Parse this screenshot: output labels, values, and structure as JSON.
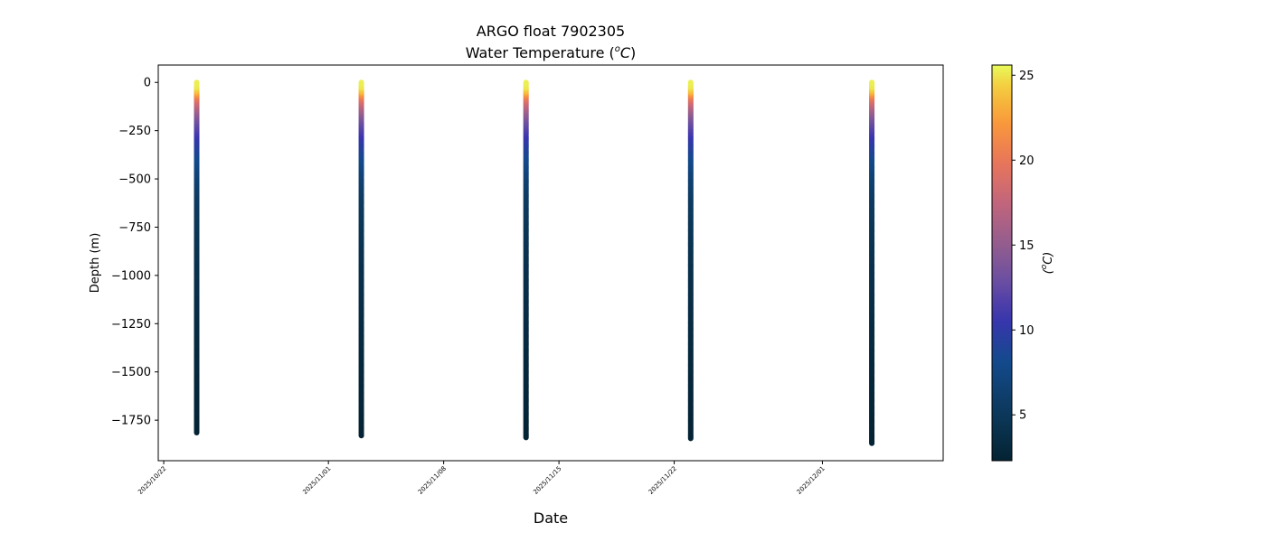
{
  "chart_data": {
    "type": "scatter",
    "title": "ARGO float 7902305",
    "subtitle": "Water Temperature (",
    "subtitle_unit_sup": "o",
    "subtitle_unit_letter": "C",
    "subtitle_close": ")",
    "xlabel": "Date",
    "ylabel": "Depth (m)",
    "colorbar_label_open": "(",
    "colorbar_label_sup": "o",
    "colorbar_label_letter": "C",
    "colorbar_label_close": ")",
    "colormap": "thermal",
    "xlim": [
      "2025-10-21T16:00",
      "2025-12-08T08:00"
    ],
    "ylim": [
      -1960,
      90
    ],
    "x_ticks": [
      "2025/10/22",
      "2025/11/01",
      "2025/11/08",
      "2025/11/15",
      "2025/11/22",
      "2025/12/01"
    ],
    "y_ticks": [
      0,
      -250,
      -500,
      -750,
      -1000,
      -1250,
      -1500,
      -1750
    ],
    "y_tick_labels": [
      "0",
      "−250",
      "−500",
      "−750",
      "−1000",
      "−1250",
      "−1500",
      "−1750"
    ],
    "colorbar_range": [
      2.3,
      25.6
    ],
    "colorbar_ticks": [
      5,
      10,
      15,
      20,
      25
    ],
    "grid": false,
    "profiles": [
      {
        "date": "2025-10-24T00:00",
        "max_depth": -1815
      },
      {
        "date": "2025-11-03T00:00",
        "max_depth": -1830
      },
      {
        "date": "2025-11-13T00:00",
        "max_depth": -1840
      },
      {
        "date": "2025-11-23T00:00",
        "max_depth": -1845
      },
      {
        "date": "2025-12-04T00:00",
        "max_depth": -1870
      }
    ],
    "temperature_profile": {
      "depth": [
        0,
        -25,
        -50,
        -75,
        -100,
        -150,
        -200,
        -300,
        -400,
        -500,
        -600,
        -800,
        -1000,
        -1250,
        -1500,
        -1900
      ],
      "temperature": [
        25.3,
        25.0,
        23.5,
        20.5,
        18.5,
        15.5,
        13.0,
        10.0,
        8.0,
        6.5,
        5.5,
        4.6,
        4.0,
        3.4,
        2.9,
        2.4
      ]
    }
  }
}
